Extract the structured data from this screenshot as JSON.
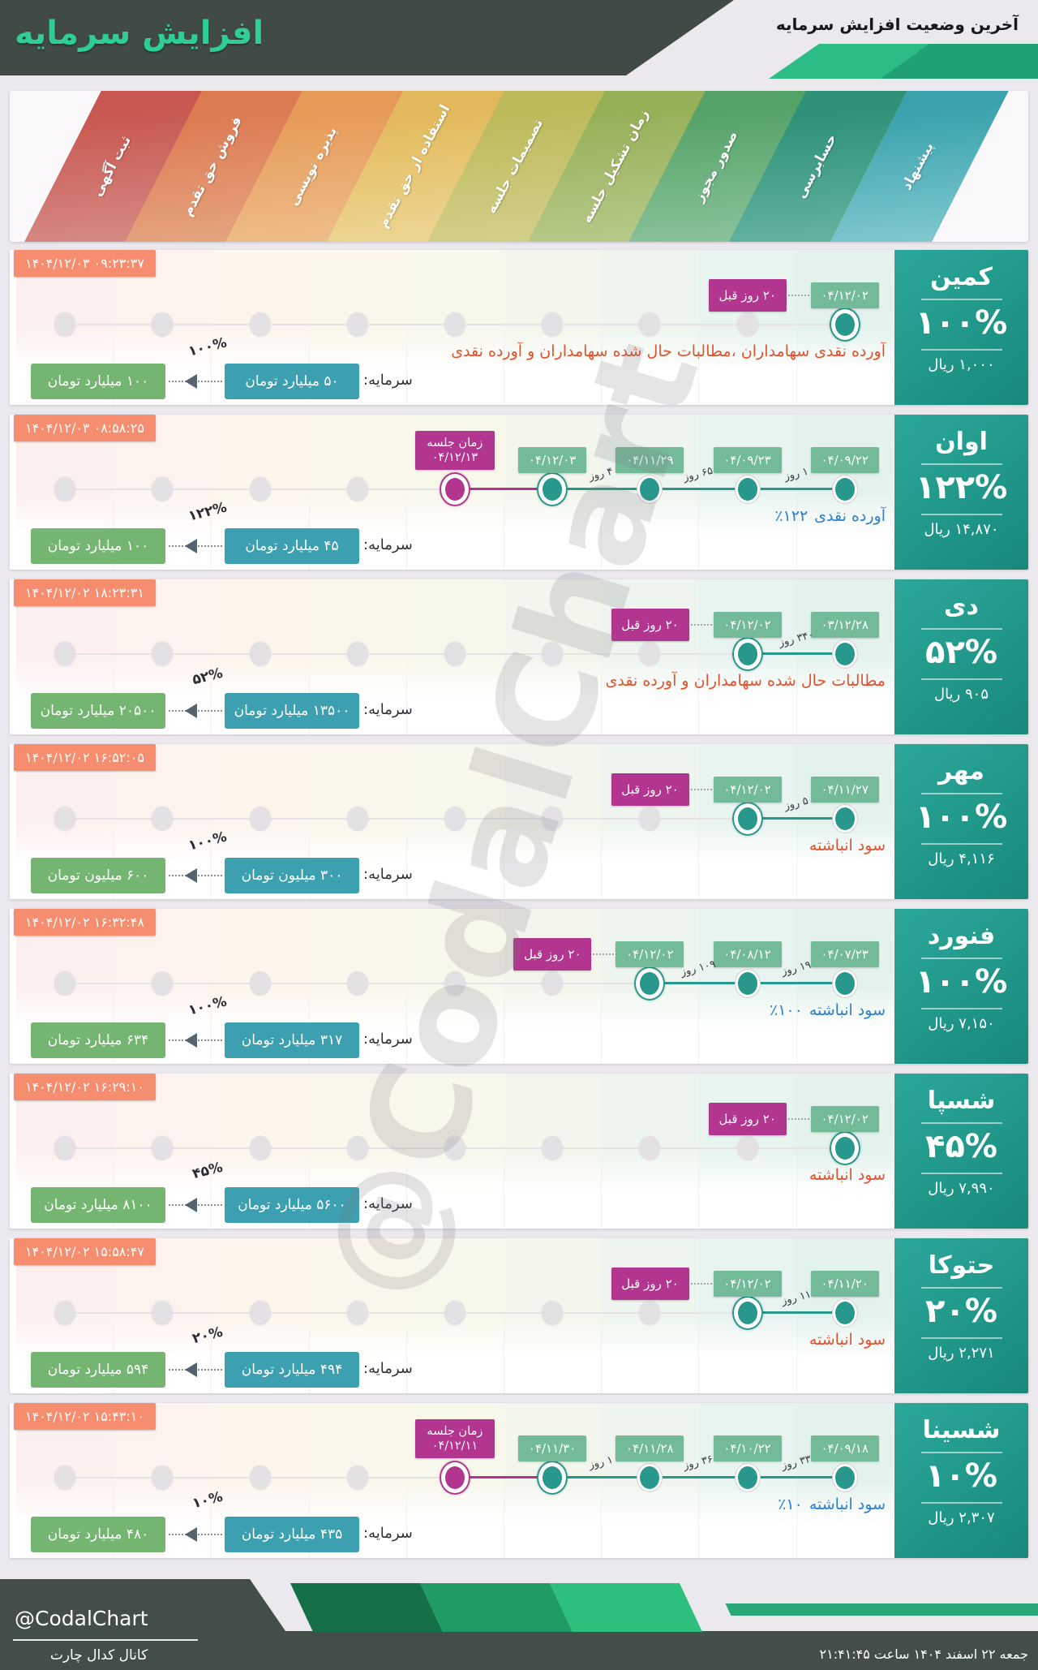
{
  "header": {
    "title": "افزایش سرمایه",
    "subtitle": "آخرین وضعیت افزایش سرمایه",
    "title_color": "#2fce92",
    "bar_color": "#414b46",
    "accent_green_light": "#2cbd85",
    "accent_green_dark": "#1fa173"
  },
  "banner": {
    "stages": [
      {
        "label": "ثبت آگهی",
        "color": "#c7574f",
        "color_light": "#d58a84",
        "tint": "#fcf0ee"
      },
      {
        "label": "فروش حق تقدم",
        "color": "#dc7a52",
        "color_light": "#e5a47f",
        "tint": "#fcf3ee"
      },
      {
        "label": "پذیره نویسی",
        "color": "#e69a58",
        "color_light": "#eebd89",
        "tint": "#fbf5ec"
      },
      {
        "label": "استفاده از حق تقدم",
        "color": "#e2b95a",
        "color_light": "#edd694",
        "tint": "#faf6eb"
      },
      {
        "label": "تصمیمات جلسه",
        "color": "#bcba5a",
        "color_light": "#d3cf8b",
        "tint": "#f8f7ec"
      },
      {
        "label": "زمان تشکیل جلسه",
        "color": "#96b057",
        "color_light": "#b7c98a",
        "tint": "#f3f6ec"
      },
      {
        "label": "صدور مجوز",
        "color": "#55a268",
        "color_light": "#8ac29a",
        "tint": "#edf5ee"
      },
      {
        "label": "حسابرسی",
        "color": "#2e9077",
        "color_light": "#63b3a0",
        "tint": "#e8f4f0"
      },
      {
        "label": "پیشنهاد",
        "color": "#3aa2ad",
        "color_light": "#7fc8d0",
        "tint": "#e3f2ed"
      }
    ]
  },
  "colors": {
    "timestamp_badge": "#f68d6e",
    "event_badge": "#73bb98",
    "meeting_badge": "#b2358f",
    "done_marker": "#27988b",
    "old_capital_badge": "#3da0b1",
    "new_capital_badge": "#74b572",
    "desc_red": "#e2512d",
    "desc_blue": "#2d7fd2"
  },
  "cards": [
    {
      "company": "کمین",
      "percent": "۱۰۰%",
      "price": "۱,۰۰۰ ریال",
      "timestamp": "۱۴۰۴/۱۲/۰۳ ۰۹:۲۳:۳۷",
      "prev_badge": "۲۰ روز قبل",
      "meeting": null,
      "events": [
        {
          "col": 9,
          "date": "۰۴/۱۲/۰۲",
          "ringed": true
        }
      ],
      "gaps": [],
      "desc_num": "",
      "desc_text": "آورده نقدی سهامداران ،مطالبات حال شده سهامداران و آورده نقدی",
      "desc_color": "#e2512d",
      "capital_label": "سرمایه:",
      "capital_old": "۵۰ میلیارد تومان",
      "capital_new": "۱۰۰ میلیارد تومان",
      "capital_pct": "۱۰۰%"
    },
    {
      "company": "اوان",
      "percent": "۱۲۲%",
      "price": "۱۴,۸۷۰ ریال",
      "timestamp": "۱۴۰۴/۱۲/۰۳ ۰۸:۵۸:۲۵",
      "prev_badge": null,
      "meeting": {
        "line1": "زمان جلسه",
        "line2": "۰۴/۱۲/۱۳",
        "col": 5
      },
      "events": [
        {
          "col": 6,
          "date": "۰۴/۱۲/۰۳",
          "ringed": true
        },
        {
          "col": 7,
          "date": "۰۴/۱۱/۲۹",
          "ringed": false
        },
        {
          "col": 8,
          "date": "۰۴/۰۹/۲۳",
          "ringed": false
        },
        {
          "col": 9,
          "date": "۰۴/۰۹/۲۲",
          "ringed": false
        }
      ],
      "gaps": [
        {
          "between": 6,
          "label": "۴ روز"
        },
        {
          "between": 7,
          "label": "۶۵ روز"
        },
        {
          "between": 8,
          "label": "۱ روز"
        }
      ],
      "desc_num": "٪۱۲۲",
      "desc_text": "آورده نقدی",
      "desc_color": "#2d7fd2",
      "capital_label": "سرمایه:",
      "capital_old": "۴۵ میلیارد تومان",
      "capital_new": "۱۰۰ میلیارد تومان",
      "capital_pct": "۱۲۲%"
    },
    {
      "company": "دی",
      "percent": "۵۲%",
      "price": "۹۰۵ ریال",
      "timestamp": "۱۴۰۴/۱۲/۰۲ ۱۸:۲۳:۳۱",
      "prev_badge": "۲۰ روز قبل",
      "meeting": null,
      "events": [
        {
          "col": 8,
          "date": "۰۴/۱۲/۰۲",
          "ringed": true
        },
        {
          "col": 9,
          "date": "۰۳/۱۲/۲۸",
          "ringed": false
        }
      ],
      "gaps": [
        {
          "between": 8,
          "label": "۳۴۰ روز"
        }
      ],
      "desc_num": "",
      "desc_text": "مطالبات حال شده سهامداران و آورده نقدی",
      "desc_color": "#e2512d",
      "capital_label": "سرمایه:",
      "capital_old": "۱۳۵۰۰ میلیارد تومان",
      "capital_new": "۲۰۵۰۰ میلیارد تومان",
      "capital_pct": "۵۲%"
    },
    {
      "company": "مهر",
      "percent": "۱۰۰%",
      "price": "۴,۱۱۶ ریال",
      "timestamp": "۱۴۰۴/۱۲/۰۲ ۱۶:۵۲:۰۵",
      "prev_badge": "۲۰ روز قبل",
      "meeting": null,
      "events": [
        {
          "col": 8,
          "date": "۰۴/۱۲/۰۲",
          "ringed": true
        },
        {
          "col": 9,
          "date": "۰۴/۱۱/۲۷",
          "ringed": false
        }
      ],
      "gaps": [
        {
          "between": 8,
          "label": "۵ روز"
        }
      ],
      "desc_num": "",
      "desc_text": "سود انباشته",
      "desc_color": "#e2512d",
      "capital_label": "سرمایه:",
      "capital_old": "۳۰۰ میلیون تومان",
      "capital_new": "۶۰۰ میلیون تومان",
      "capital_pct": "۱۰۰%"
    },
    {
      "company": "فنورد",
      "percent": "۱۰۰%",
      "price": "۷,۱۵۰ ریال",
      "timestamp": "۱۴۰۴/۱۲/۰۲ ۱۶:۳۲:۴۸",
      "prev_badge": "۲۰ روز قبل",
      "meeting": null,
      "events": [
        {
          "col": 7,
          "date": "۰۴/۱۲/۰۲",
          "ringed": true
        },
        {
          "col": 8,
          "date": "۰۴/۰۸/۱۲",
          "ringed": false
        },
        {
          "col": 9,
          "date": "۰۴/۰۷/۲۳",
          "ringed": false
        }
      ],
      "gaps": [
        {
          "between": 7,
          "label": "۱۰۹ روز"
        },
        {
          "between": 8,
          "label": "۱۹ روز"
        }
      ],
      "desc_num": "٪۱۰۰",
      "desc_text": "سود انباشته",
      "desc_color": "#2d7fd2",
      "capital_label": "سرمایه:",
      "capital_old": "۳۱۷ میلیارد تومان",
      "capital_new": "۶۳۴ میلیارد تومان",
      "capital_pct": "۱۰۰%"
    },
    {
      "company": "شسپا",
      "percent": "۴۵%",
      "price": "۷,۹۹۰ ریال",
      "timestamp": "۱۴۰۴/۱۲/۰۲ ۱۶:۲۹:۱۰",
      "prev_badge": "۲۰ روز قبل",
      "meeting": null,
      "events": [
        {
          "col": 9,
          "date": "۰۴/۱۲/۰۲",
          "ringed": true
        }
      ],
      "gaps": [],
      "desc_num": "",
      "desc_text": "سود انباشته",
      "desc_color": "#e2512d",
      "capital_label": "سرمایه:",
      "capital_old": "۵۶۰۰ میلیارد تومان",
      "capital_new": "۸۱۰۰ میلیارد تومان",
      "capital_pct": "۴۵%"
    },
    {
      "company": "حتوکا",
      "percent": "۲۰%",
      "price": "۲,۲۷۱ ریال",
      "timestamp": "۱۴۰۴/۱۲/۰۲ ۱۵:۵۸:۴۷",
      "prev_badge": "۲۰ روز قبل",
      "meeting": null,
      "events": [
        {
          "col": 8,
          "date": "۰۴/۱۲/۰۲",
          "ringed": true
        },
        {
          "col": 9,
          "date": "۰۴/۱۱/۲۰",
          "ringed": false
        }
      ],
      "gaps": [
        {
          "between": 8,
          "label": "۱۱ روز"
        }
      ],
      "desc_num": "",
      "desc_text": "سود انباشته",
      "desc_color": "#e2512d",
      "capital_label": "سرمایه:",
      "capital_old": "۴۹۴ میلیارد تومان",
      "capital_new": "۵۹۴ میلیارد تومان",
      "capital_pct": "۲۰%"
    },
    {
      "company": "شسینا",
      "percent": "۱۰%",
      "price": "۲,۳۰۷ ریال",
      "timestamp": "۱۴۰۴/۱۲/۰۲ ۱۵:۴۳:۱۰",
      "prev_badge": null,
      "meeting": {
        "line1": "زمان جلسه",
        "line2": "۰۴/۱۲/۱۱",
        "col": 5
      },
      "events": [
        {
          "col": 6,
          "date": "۰۴/۱۱/۳۰",
          "ringed": true
        },
        {
          "col": 7,
          "date": "۰۴/۱۱/۲۸",
          "ringed": false
        },
        {
          "col": 8,
          "date": "۰۴/۱۰/۲۲",
          "ringed": false
        },
        {
          "col": 9,
          "date": "۰۴/۰۹/۱۸",
          "ringed": false
        }
      ],
      "gaps": [
        {
          "between": 6,
          "label": "۱ روز"
        },
        {
          "between": 7,
          "label": "۳۶ روز"
        },
        {
          "between": 8,
          "label": "۳۳ روز"
        }
      ],
      "desc_num": "٪۱۰",
      "desc_text": "سود انباشته",
      "desc_color": "#2d7fd2",
      "capital_label": "سرمایه:",
      "capital_old": "۴۳۵ میلیارد تومان",
      "capital_new": "۴۸۰ میلیارد تومان",
      "capital_pct": "۱۰%"
    }
  ],
  "watermark": {
    "text": "@CodalChart"
  },
  "footer": {
    "handle": "@CodalChart",
    "channel": "کانال کدال چارت",
    "datetime": "جمعه ۲۲ اسفند ۱۴۰۴ ساعت ۲۱:۴۱:۴۵"
  }
}
